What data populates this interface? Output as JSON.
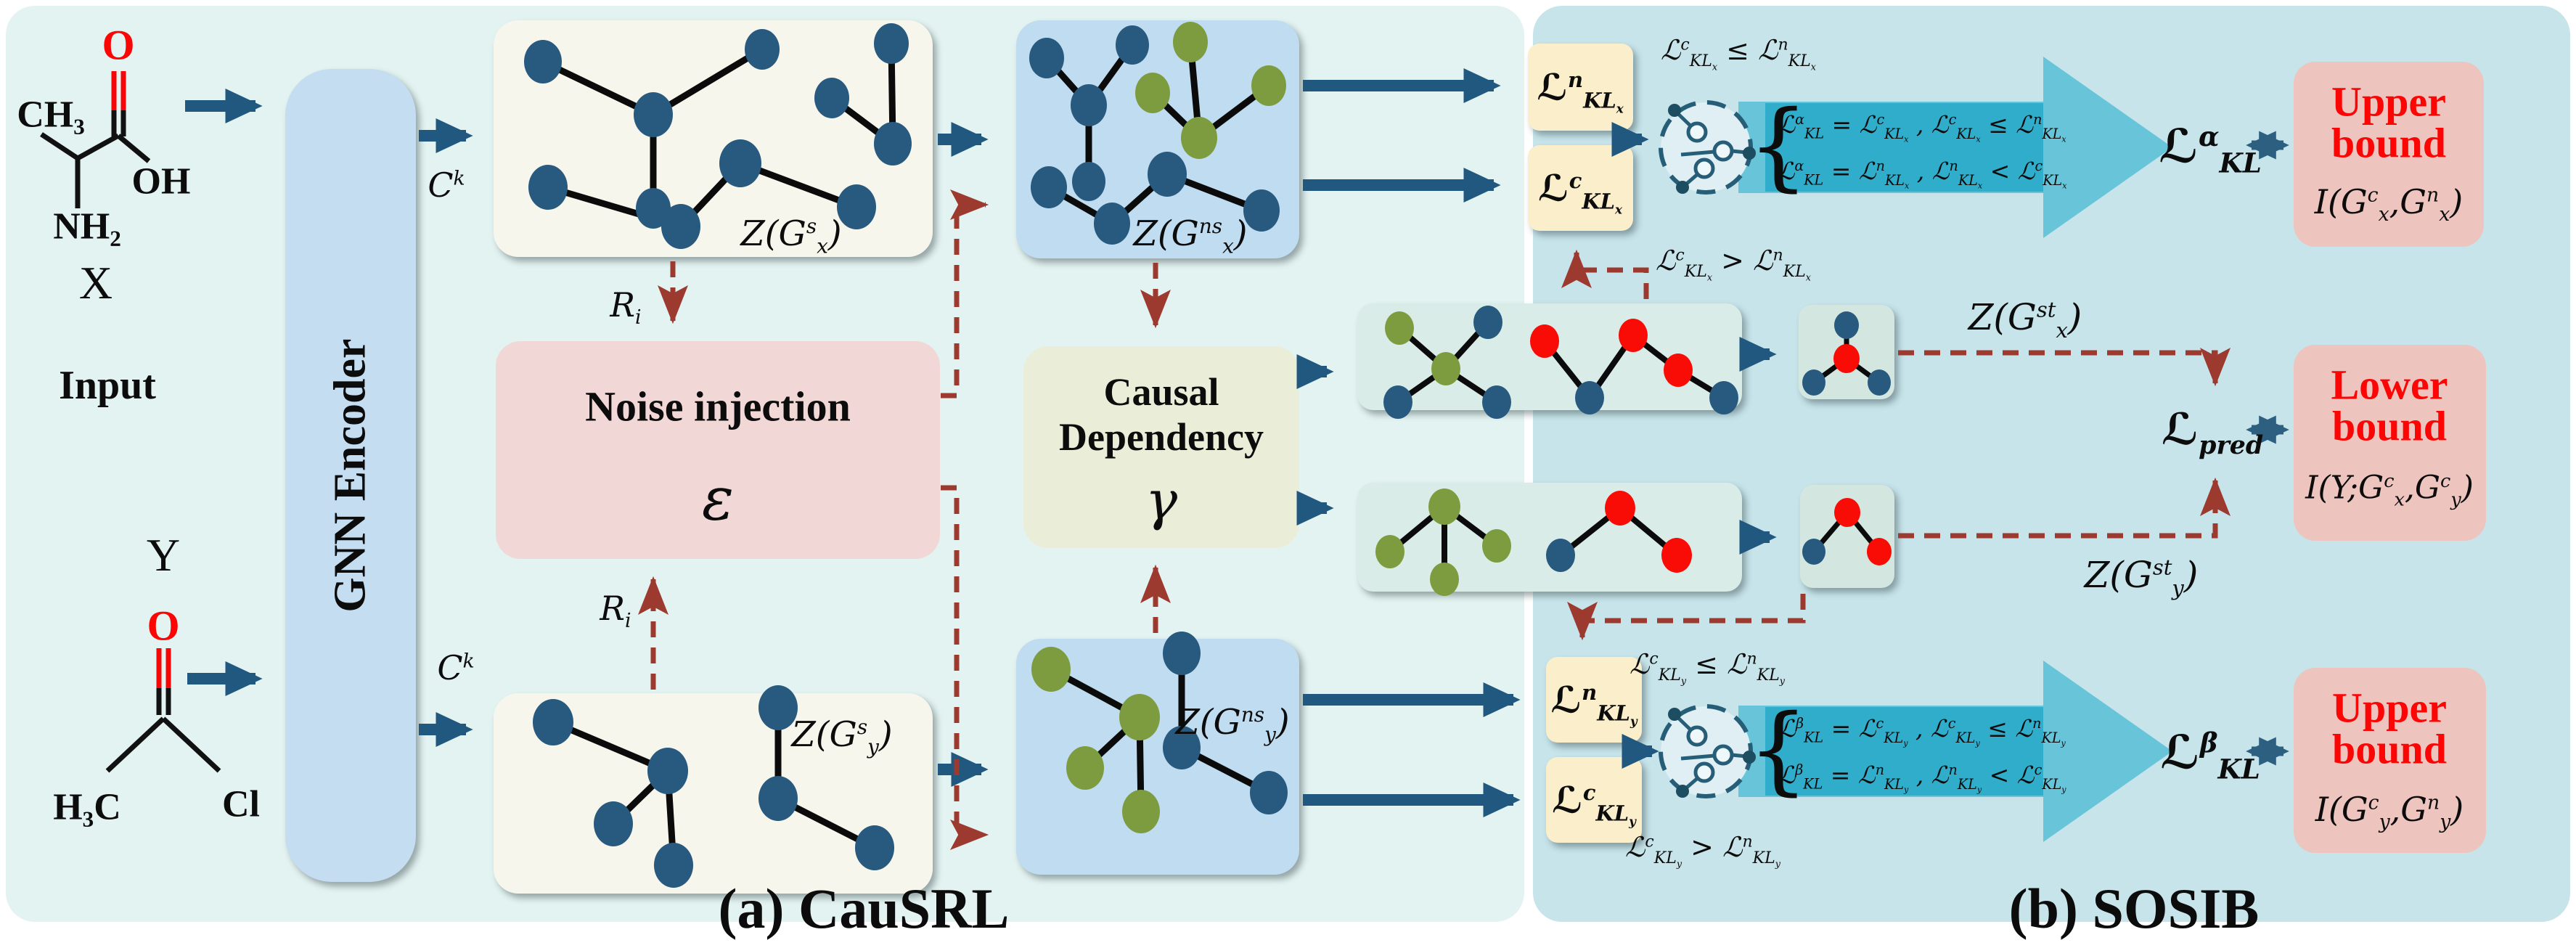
{
  "titles": {
    "panel_a": "(a) CauSRL",
    "panel_b": "(b) SOSIB"
  },
  "input_label": "Input",
  "molecule_x": {
    "name": "X",
    "ch3": "CH₃",
    "o": "O",
    "oh": "OH",
    "nh2": "NH₂"
  },
  "molecule_y": {
    "name": "Y",
    "o": "O",
    "h3c": "H₃C",
    "cl": "Cl"
  },
  "encoder": {
    "label": "GNN Encoder"
  },
  "flow": {
    "ck": "C^{k}",
    "ri": "R_{i}"
  },
  "noise": {
    "title": "Noise injection",
    "symbol": "ε"
  },
  "causal": {
    "title_line1": "Causal",
    "title_line2": "Dependency",
    "symbol": "γ"
  },
  "latent_labels": {
    "zxs": "Z(G^{s}_{x})",
    "zxns": "Z(G^{ns}_{x})",
    "zys": "Z(G^{s}_{y})",
    "zyns": "Z(G^{ns}_{y})",
    "zxst": "Z(G^{st}_{x})",
    "zyst": "Z(G^{st}_{y})"
  },
  "losses": {
    "kl_n_x": "ℒ^{n}_{KL_{x}}",
    "kl_c_x": "ℒ^{c}_{KL_{x}}",
    "kl_n_y": "ℒ^{n}_{KL_{y}}",
    "kl_c_y": "ℒ^{c}_{KL_{y}}",
    "kl_alpha": "ℒ^{α}_{KL}",
    "kl_beta": "ℒ^{β}_{KL}",
    "pred": "ℒ_{pred}"
  },
  "conditions": {
    "x_le": "ℒ^{c}_{KL_{x}} ≤ ℒ^{n}_{KL_{x}}",
    "x_gt": "ℒ^{c}_{KL_{x}} > ℒ^{n}_{KL_{x}}",
    "y_le": "ℒ^{c}_{KL_{y}} ≤ ℒ^{n}_{KL_{y}}",
    "y_gt": "ℒ^{c}_{KL_{y}} > ℒ^{n}_{KL_{y}}"
  },
  "selector_x": {
    "case1": "ℒ^{α}_{KL} = ℒ^{c}_{KL_{x}} , ℒ^{c}_{KL_{x}} ≤ ℒ^{n}_{KL_{x}}",
    "case2": "ℒ^{α}_{KL} = ℒ^{n}_{KL_{x}} , ℒ^{n}_{KL_{x}} < ℒ^{c}_{KL_{x}}"
  },
  "selector_y": {
    "case1": "ℒ^{β}_{KL} = ℒ^{c}_{KL_{y}} , ℒ^{c}_{KL_{y}} ≤ ℒ^{n}_{KL_{y}}",
    "case2": "ℒ^{β}_{KL} = ℒ^{n}_{KL_{y}} , ℒ^{n}_{KL_{y}} < ℒ^{c}_{KL_{y}}"
  },
  "bounds": {
    "upper_x": {
      "title1": "Upper",
      "title2": "bound",
      "formula": "I(G^{c}_{x},G^{n}_{x})"
    },
    "lower": {
      "title1": "Lower",
      "title2": "bound",
      "formula": "I(Y;G^{c}_{x},G^{c}_{y})"
    },
    "upper_y": {
      "title1": "Upper",
      "title2": "bound",
      "formula": "I(G^{c}_{y},G^{n}_{y})"
    }
  },
  "colors": {
    "node_blue": "#28597e",
    "node_green": "#7d9c40",
    "node_red": "#f90b06",
    "arrow_blue": "#21587f",
    "dashed_red": "#9c3a30",
    "selector_band": "#2fadcb",
    "big_arrow": "#67c4d9",
    "panel_a_bg": "#e3f3f1",
    "panel_b_bg": "#c6e4ea",
    "loss_box_bg": "#faeecb",
    "bound_box_bg": "#eec4be",
    "noise_bg": "#f2d7d7",
    "causal_bg": "#eaedd8",
    "encoder_bg": "#c5ddf1"
  }
}
